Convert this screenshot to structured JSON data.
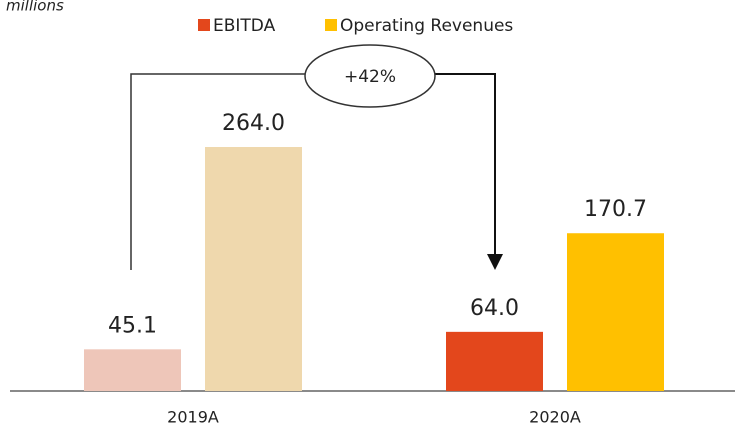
{
  "chart_data": {
    "type": "bar",
    "subtitle": "millions",
    "annotation": "+42%",
    "categories": [
      "2019A",
      "2020A"
    ],
    "series": [
      {
        "name": "EBITDA",
        "color": "#e3471c",
        "point_colors": [
          "#eec6b9",
          "#e3471c"
        ],
        "values": [
          45.1,
          64.0
        ],
        "value_labels": [
          "45.1",
          "64.0"
        ]
      },
      {
        "name": "Operating Revenues",
        "color": "#ffc000",
        "point_colors": [
          "#efd8ad",
          "#ffc000"
        ],
        "values": [
          264.0,
          170.7
        ],
        "value_labels": [
          "264.0",
          "170.7"
        ]
      }
    ],
    "legend": "top"
  }
}
